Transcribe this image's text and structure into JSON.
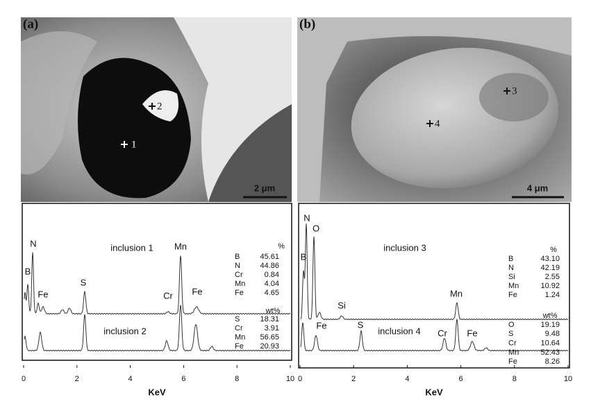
{
  "panels": [
    {
      "label": "(a)",
      "markers": [
        "2",
        "1"
      ],
      "scale_bar": "2 μm"
    },
    {
      "label": "(b)",
      "markers": [
        "3",
        "4"
      ],
      "scale_bar": "4 μm"
    }
  ],
  "spectra": [
    {
      "ticks": [
        "0",
        "2",
        "4",
        "6",
        "8",
        "10"
      ],
      "axis_label": "KeV",
      "peaks": [
        "B",
        "N",
        "Fe",
        "S",
        "Cr",
        "Mn",
        "Fe"
      ],
      "inclusions": [
        {
          "name": "inclusion 1",
          "unit": "%",
          "elements": [
            "B",
            "N",
            "Cr",
            "Mn",
            "Fe"
          ],
          "values": [
            "45.61",
            "44.86",
            "0.84",
            "4.04",
            "4.65"
          ]
        },
        {
          "name": "inclusion 2",
          "unit": "wt%",
          "elements": [
            "S",
            "Cr",
            "Mn",
            "Fe"
          ],
          "values": [
            "18.31",
            "3.91",
            "56.65",
            "20.93"
          ]
        }
      ]
    },
    {
      "ticks": [
        "0",
        "2",
        "4",
        "6",
        "8",
        "10"
      ],
      "axis_label": "KeV",
      "peaks": [
        "N",
        "O",
        "B",
        "Si",
        "Fe",
        "S",
        "Mn",
        "Cr",
        "Fe"
      ],
      "inclusions": [
        {
          "name": "inclusion 3",
          "unit": "%",
          "elements": [
            "B",
            "N",
            "Si",
            "Mn",
            "Fe"
          ],
          "values": [
            "43.10",
            "42.19",
            "2.55",
            "10.92",
            "1.24"
          ]
        },
        {
          "name": "inclusion 4",
          "unit": "wt%",
          "elements": [
            "O",
            "S",
            "Cr",
            "Mn",
            "Fe"
          ],
          "values": [
            "19.19",
            "9.48",
            "10.64",
            "52.43",
            "8.26"
          ]
        }
      ]
    }
  ]
}
